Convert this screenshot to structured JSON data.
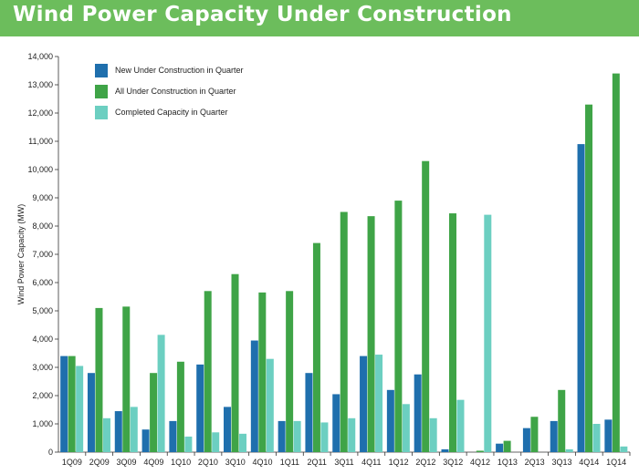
{
  "header": {
    "title": "Wind Power Capacity Under Construction"
  },
  "colors": {
    "banner": "#6cbd5c",
    "new": "#1f6fad",
    "all": "#3fa447",
    "completed": "#6ccfc1"
  },
  "chart_data": {
    "type": "bar",
    "title": "Wind Power Capacity Under Construction",
    "xlabel": "",
    "ylabel": "Wind Power Capacity (MW)",
    "ylim": [
      0,
      14000
    ],
    "ytick_step": 1000,
    "yticks": [
      "0",
      "1,000",
      "2,000",
      "3,000",
      "4,000",
      "5,000",
      "6,000",
      "7,000",
      "8,000",
      "9,000",
      "10,000",
      "11,000",
      "12,000",
      "13,000",
      "14,000"
    ],
    "grid": false,
    "legend_position": "top-left",
    "categories": [
      "1Q09",
      "2Q09",
      "3Q09",
      "4Q09",
      "1Q10",
      "2Q10",
      "3Q10",
      "4Q10",
      "1Q11",
      "2Q11",
      "3Q11",
      "4Q11",
      "1Q12",
      "2Q12",
      "3Q12",
      "4Q12",
      "1Q13",
      "2Q13",
      "3Q13",
      "4Q14",
      "1Q14"
    ],
    "series": [
      {
        "name": "New Under Construction in Quarter",
        "color": "#1f6fad",
        "values": [
          3400,
          2800,
          1450,
          800,
          1100,
          3100,
          1600,
          3950,
          1100,
          2800,
          2050,
          3400,
          2200,
          2750,
          100,
          0,
          300,
          850,
          1100,
          10900,
          1150
        ]
      },
      {
        "name": "All Under Construction in Quarter",
        "color": "#3fa447",
        "values": [
          3400,
          5100,
          5150,
          2800,
          3200,
          5700,
          6300,
          5650,
          5700,
          7400,
          8500,
          8350,
          8900,
          10300,
          8450,
          50,
          400,
          1250,
          2200,
          12300,
          13400
        ]
      },
      {
        "name": "Completed Capacity in Quarter",
        "color": "#6ccfc1",
        "values": [
          3050,
          1200,
          1600,
          4150,
          550,
          700,
          650,
          3300,
          1100,
          1050,
          1200,
          3450,
          1700,
          1200,
          1850,
          8400,
          0,
          0,
          100,
          1000,
          200
        ]
      }
    ]
  }
}
